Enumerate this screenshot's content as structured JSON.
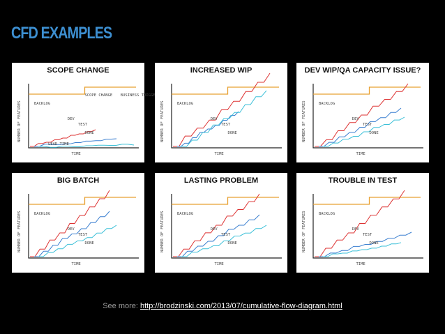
{
  "header": {
    "title": "CFD EXAMPLES"
  },
  "panels": [
    {
      "title": "SCOPE CHANGE",
      "labels": {
        "y_axis": "NUMBER OF FEATURES",
        "x_axis": "TIME",
        "backlog": "BACKLOG",
        "dev": "DEV",
        "test": "TEST",
        "done": "DONE"
      },
      "annotations": [
        "SCOPE CHANGE",
        "BUSINESS TRIGGER DATE",
        "LEAD TIME"
      ]
    },
    {
      "title": "INCREASED WIP",
      "labels": {
        "y_axis": "NUMBER OF FEATURES",
        "x_axis": "TIME",
        "backlog": "BACKLOG",
        "dev": "DEV",
        "test": "TEST",
        "done": "DONE"
      }
    },
    {
      "title": "DEV WIP/QA CAPACITY ISSUE?",
      "labels": {
        "y_axis": "NUMBER OF FEATURES",
        "x_axis": "TIME",
        "backlog": "BACKLOG",
        "dev": "DEV",
        "test": "TEST",
        "done": "DONE"
      }
    },
    {
      "title": "BIG BATCH",
      "labels": {
        "y_axis": "NUMBER OF FEATURES",
        "x_axis": "TIME",
        "backlog": "BACKLOG",
        "dev": "DEV",
        "test": "TEST",
        "done": "DONE"
      }
    },
    {
      "title": "LASTING PROBLEM",
      "labels": {
        "y_axis": "NUMBER OF FEATURES",
        "x_axis": "TIME",
        "backlog": "BACKLOG",
        "dev": "DEV",
        "test": "TEST",
        "done": "DONE"
      }
    },
    {
      "title": "TROUBLE IN TEST",
      "labels": {
        "y_axis": "NUMBER OF FEATURES",
        "x_axis": "TIME",
        "backlog": "BACKLOG",
        "dev": "DEV",
        "test": "TEST",
        "done": "DONE"
      }
    }
  ],
  "footer": {
    "prefix": "See more:",
    "link": "http://brodzinski.com/2013/07/cumulative-flow-diagram.html"
  }
}
